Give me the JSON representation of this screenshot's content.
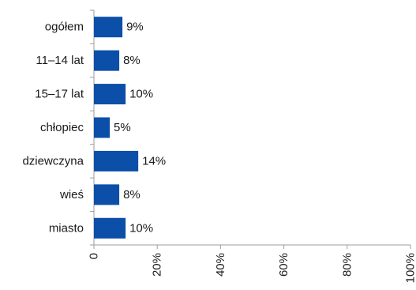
{
  "chart_data": {
    "type": "bar",
    "orientation": "horizontal",
    "categories": [
      "ogółem",
      "11–14 lat",
      "15–17 lat",
      "chłopiec",
      "dziewczyna",
      "wieś",
      "miasto"
    ],
    "values": [
      9,
      8,
      10,
      5,
      14,
      8,
      10
    ],
    "data_labels": [
      "9%",
      "8%",
      "10%",
      "5%",
      "14%",
      "8%",
      "10%"
    ],
    "xlim": [
      0,
      100
    ],
    "x_ticks": [
      0,
      20,
      40,
      60,
      80,
      100
    ],
    "x_tick_labels": [
      "0",
      "20%",
      "40%",
      "60%",
      "80%",
      "100%"
    ],
    "bar_color": "#0b4fa8",
    "grid": false,
    "legend": "none"
  }
}
